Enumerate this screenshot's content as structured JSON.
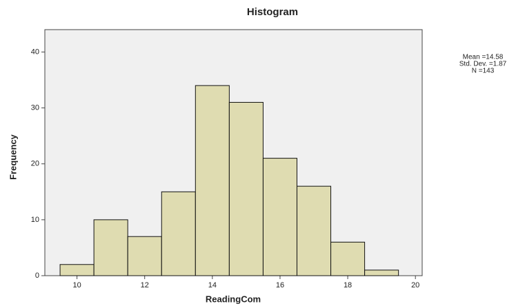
{
  "chart_data": {
    "type": "histogram",
    "title": "Histogram",
    "x_label": "ReadingCom",
    "y_label": "Frequency",
    "bins": [
      9.5,
      10.5,
      11.5,
      12.5,
      13.5,
      14.5,
      15.5,
      16.5,
      17.5,
      18.5,
      19.5
    ],
    "values": [
      2,
      10,
      7,
      15,
      34,
      31,
      21,
      16,
      6,
      1
    ],
    "color": "#dcd8a6",
    "xlim": [
      9.05,
      20.2
    ],
    "xticks": [
      10,
      12,
      14,
      16,
      18,
      20
    ],
    "ylim": [
      0,
      44
    ],
    "yticks": [
      0,
      10,
      20,
      30,
      40
    ],
    "annotations": [
      "Mean =14.58",
      "Std. Dev. =1.87",
      "N =143"
    ]
  }
}
